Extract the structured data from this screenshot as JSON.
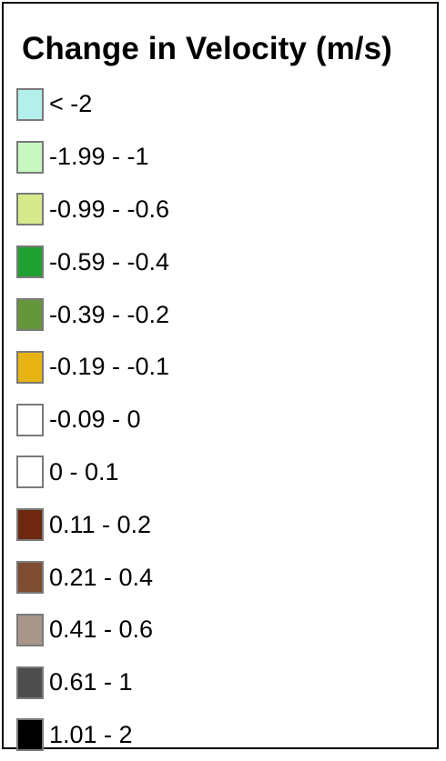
{
  "legend": {
    "title": "Change in Velocity (m/s)",
    "items": [
      {
        "label": "< -2",
        "color": "#b4f0eb"
      },
      {
        "label": "-1.99 - -1",
        "color": "#c6f8c0"
      },
      {
        "label": "-0.99 - -0.6",
        "color": "#d6ea8c"
      },
      {
        "label": "-0.59 - -0.4",
        "color": "#1fa030"
      },
      {
        "label": "-0.39 - -0.2",
        "color": "#66963a"
      },
      {
        "label": "-0.19 - -0.1",
        "color": "#e8b414"
      },
      {
        "label": "-0.09 - 0",
        "color": "#ffffff"
      },
      {
        "label": "0 - 0.1",
        "color": "#ffffff"
      },
      {
        "label": "0.11 - 0.2",
        "color": "#6e2810"
      },
      {
        "label": "0.21 - 0.4",
        "color": "#7e4c30"
      },
      {
        "label": "0.41 - 0.6",
        "color": "#a8968a"
      },
      {
        "label": "0.61 - 1",
        "color": "#4d4d4d"
      },
      {
        "label": "1.01 - 2",
        "color": "#000000"
      }
    ]
  }
}
